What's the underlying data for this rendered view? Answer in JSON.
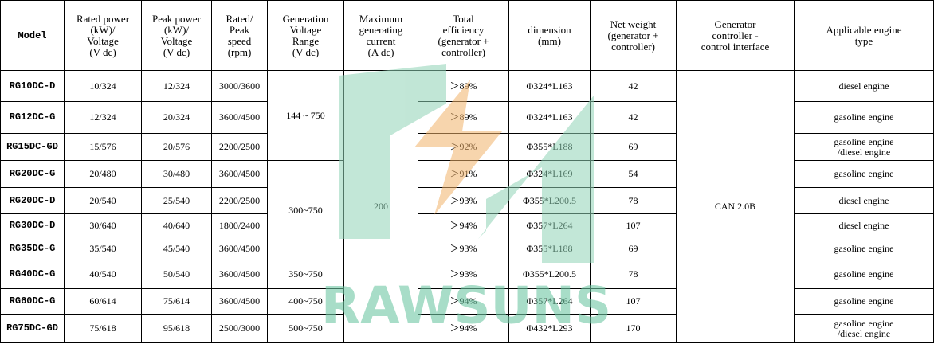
{
  "table": {
    "headers": [
      "Model",
      "Rated power\n(kW)/\nVoltage\n(V dc)",
      "Peak power\n(kW)/\nVoltage\n(V dc)",
      "Rated/\nPeak\nspeed\n(rpm)",
      "Generation\nVoltage\nRange\n(V dc)",
      "Maximum\ngenerating\ncurrent\n(A dc)",
      "Total\nefficiency\n(generator +\ncontroller)",
      "dimension\n(mm)",
      "Net weight\n(generator +\ncontroller)",
      "Generator\ncontroller -\ncontrol interface",
      "Applicable engine\ntype"
    ],
    "rows": [
      {
        "model": "RG10DC-D",
        "rated": "10/324",
        "peak": "12/324",
        "speed": "3000/3600",
        "efficiency": "＞89%",
        "dimension": "Φ324*L163",
        "weight": "42",
        "engine": "diesel engine"
      },
      {
        "model": "RG12DC-G",
        "rated": "12/324",
        "peak": "20/324",
        "speed": "3600/4500",
        "efficiency": "＞89%",
        "dimension": "Φ324*L163",
        "weight": "42",
        "engine": "gasoline engine"
      },
      {
        "model": "RG15DC-GD",
        "rated": "15/576",
        "peak": "20/576",
        "speed": "2200/2500",
        "efficiency": "＞92%",
        "dimension": "Φ355*L188",
        "weight": "69",
        "engine": "gasoline engine\n/diesel engine"
      },
      {
        "model": "RG20DC-G",
        "rated": "20/480",
        "peak": "30/480",
        "speed": "3600/4500",
        "efficiency": "＞91%",
        "dimension": "Φ324*L169",
        "weight": "54",
        "engine": "gasoline engine"
      },
      {
        "model": "RG20DC-D",
        "rated": "20/540",
        "peak": "25/540",
        "speed": "2200/2500",
        "efficiency": "＞93%",
        "dimension": "Φ355*L200.5",
        "weight": "78",
        "engine": "diesel engine"
      },
      {
        "model": "RG30DC-D",
        "rated": "30/640",
        "peak": "40/640",
        "speed": "1800/2400",
        "efficiency": "＞94%",
        "dimension": "Φ357*L264",
        "weight": "107",
        "engine": "diesel engine"
      },
      {
        "model": "RG35DC-G",
        "rated": "35/540",
        "peak": "45/540",
        "speed": "3600/4500",
        "efficiency": "＞93%",
        "dimension": "Φ355*L188",
        "weight": "69",
        "engine": "gasoline engine"
      },
      {
        "model": "RG40DC-G",
        "rated": "40/540",
        "peak": "50/540",
        "speed": "3600/4500",
        "efficiency": "＞93%",
        "dimension": "Φ355*L200.5",
        "weight": "78",
        "engine": "gasoline engine"
      },
      {
        "model": "RG60DC-G",
        "rated": "60/614",
        "peak": "75/614",
        "speed": "3600/4500",
        "efficiency": "＞94%",
        "dimension": "Φ357*L264",
        "weight": "107",
        "engine": "gasoline engine"
      },
      {
        "model": "RG75DC-GD",
        "rated": "75/618",
        "peak": "95/618",
        "speed": "2500/3000",
        "efficiency": "＞94%",
        "dimension": "Φ432*L293",
        "weight": "170",
        "engine": "gasoline engine\n/diesel engine"
      }
    ],
    "voltage_ranges": [
      "144 ~ 750",
      "300~750",
      "350~750",
      "400~750",
      "500~750"
    ],
    "max_current": "200",
    "controller_interface": "CAN 2.0B"
  },
  "watermark": "RAWSUNS"
}
